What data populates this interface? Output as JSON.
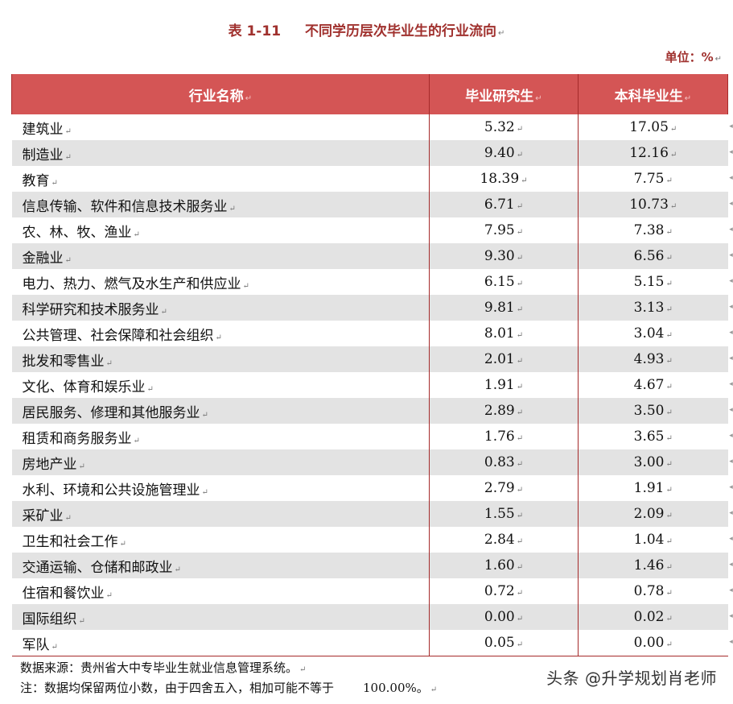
{
  "title": {
    "number": "表 1-11",
    "text": "不同学历层次毕业生的行业流向"
  },
  "unit": "单位：%",
  "paragraph_mark": "↵",
  "table": {
    "headers": [
      "行业名称",
      "毕业研究生",
      "本科毕业生"
    ],
    "rows": [
      [
        "建筑业",
        "5.32",
        "17.05"
      ],
      [
        "制造业",
        "9.40",
        "12.16"
      ],
      [
        "教育",
        "18.39",
        "7.75"
      ],
      [
        "信息传输、软件和信息技术服务业",
        "6.71",
        "10.73"
      ],
      [
        "农、林、牧、渔业",
        "7.95",
        "7.38"
      ],
      [
        "金融业",
        "9.30",
        "6.56"
      ],
      [
        "电力、热力、燃气及水生产和供应业",
        "6.15",
        "5.15"
      ],
      [
        "科学研究和技术服务业",
        "9.81",
        "3.13"
      ],
      [
        "公共管理、社会保障和社会组织",
        "8.01",
        "3.04"
      ],
      [
        "批发和零售业",
        "2.01",
        "4.93"
      ],
      [
        "文化、体育和娱乐业",
        "1.91",
        "4.67"
      ],
      [
        "居民服务、修理和其他服务业",
        "2.89",
        "3.50"
      ],
      [
        "租赁和商务服务业",
        "1.76",
        "3.65"
      ],
      [
        "房地产业",
        "0.83",
        "3.00"
      ],
      [
        "水利、环境和公共设施管理业",
        "2.79",
        "1.91"
      ],
      [
        "采矿业",
        "1.55",
        "2.09"
      ],
      [
        "卫生和社会工作",
        "2.84",
        "1.04"
      ],
      [
        "交通运输、仓储和邮政业",
        "1.60",
        "1.46"
      ],
      [
        "住宿和餐饮业",
        "0.72",
        "0.78"
      ],
      [
        "国际组织",
        "0.00",
        "0.02"
      ],
      [
        "军队",
        "0.05",
        "0.00"
      ]
    ]
  },
  "notes": {
    "source": "数据来源：贵州省大中专毕业生就业信息管理系统。",
    "note_prefix": "注：数据均保留两位小数，由于四舍五入，相加可能不等于",
    "note_value": "100.00%。"
  },
  "watermark": "头条 @升学规划肖老师"
}
